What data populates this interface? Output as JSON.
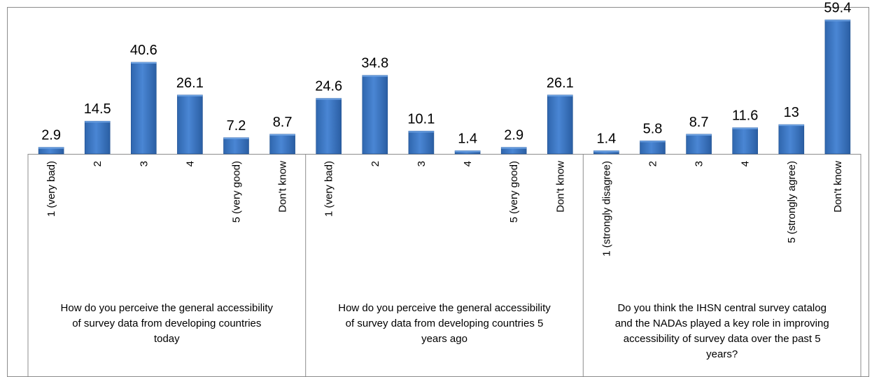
{
  "chart_data": {
    "type": "bar",
    "title": "",
    "xlabel": "",
    "ylabel": "",
    "ylim": [
      0,
      62
    ],
    "grid": false,
    "legend": "none",
    "bar_color": "#3a77c4",
    "bar_color_dark": "#1f4f8f",
    "bar_color_light": "#6a9fe0",
    "groups": [
      {
        "label_lines": [
          "How do you perceive the general accessibility",
          "of survey data from developing countries",
          "today"
        ],
        "categories": [
          "1 (very bad)",
          "2",
          "3",
          "4",
          "5 (very good)",
          "Don't know"
        ],
        "values": [
          2.9,
          14.5,
          40.6,
          26.1,
          7.2,
          8.7
        ]
      },
      {
        "label_lines": [
          "How do you perceive the general accessibility",
          "of survey data from developing countries 5",
          "years ago"
        ],
        "categories": [
          "1 (very bad)",
          "2",
          "3",
          "4",
          "5 (very good)",
          "Don't know"
        ],
        "values": [
          24.6,
          34.8,
          10.1,
          1.4,
          2.9,
          26.1
        ]
      },
      {
        "label_lines": [
          "Do you think the IHSN central survey catalog",
          "and the NADAs played a key role in improving",
          "accessibility of survey data over the past 5",
          "years?"
        ],
        "categories": [
          "1 (strongly disagree)",
          "2",
          "3",
          "4",
          "5 (strongly agree)",
          "Don't know"
        ],
        "values": [
          1.4,
          5.8,
          8.7,
          11.6,
          13,
          59.4
        ]
      }
    ]
  }
}
